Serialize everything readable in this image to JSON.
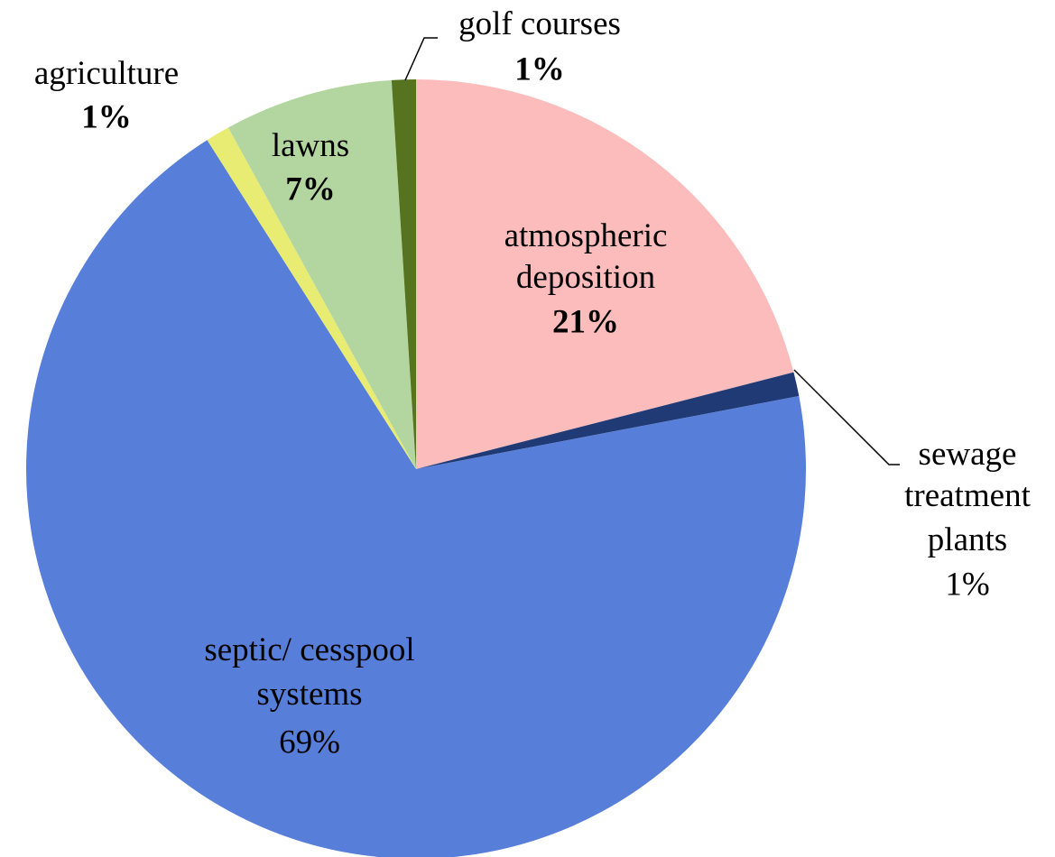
{
  "chart_data": {
    "type": "pie",
    "categories": [
      "atmospheric deposition",
      "sewage treatment plants",
      "septic/ cesspool systems",
      "agriculture",
      "lawns",
      "golf courses"
    ],
    "values": [
      21,
      1,
      69,
      1,
      7,
      1
    ],
    "value_labels": [
      "21%",
      "1%",
      "69%",
      "1%",
      "7%",
      "1%"
    ],
    "colors": [
      "#fcbcbc",
      "#1f3a75",
      "#577ed8",
      "#e8ec72",
      "#b3d6a0",
      "#56731f"
    ]
  }
}
